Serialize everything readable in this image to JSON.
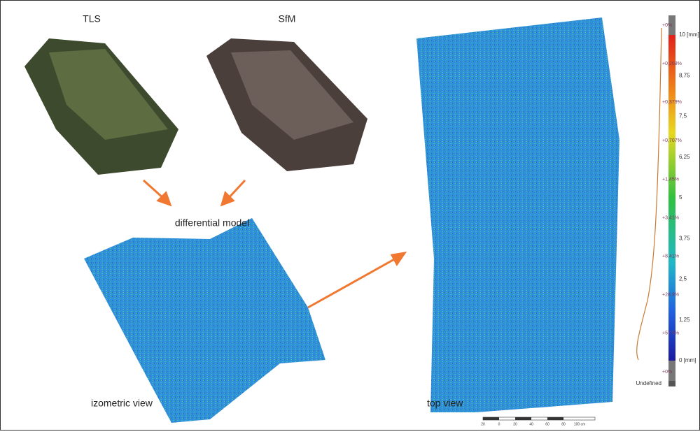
{
  "panels": {
    "tls": "TLS",
    "sfm": "SfM",
    "differential": "differential model",
    "isometric": "izometric view",
    "top": "top view"
  },
  "color_scale": {
    "labels": [
      "10 [mm]",
      "8,75",
      "7,5",
      "6,25",
      "5",
      "3,75",
      "2,5",
      "1,25",
      "0 [mm]"
    ],
    "undefined": "Undefined"
  },
  "distribution": {
    "labels": [
      "+0%",
      "+0,208%",
      "+0,379%",
      "+0,707%",
      "+1,45%",
      "+3,41%",
      "+8,41%",
      "+28,9%",
      "+57,5%",
      "+0%"
    ]
  },
  "scale_bar": {
    "labels": [
      "20",
      "0",
      "20",
      "40",
      "60",
      "80",
      "100 cm"
    ]
  }
}
